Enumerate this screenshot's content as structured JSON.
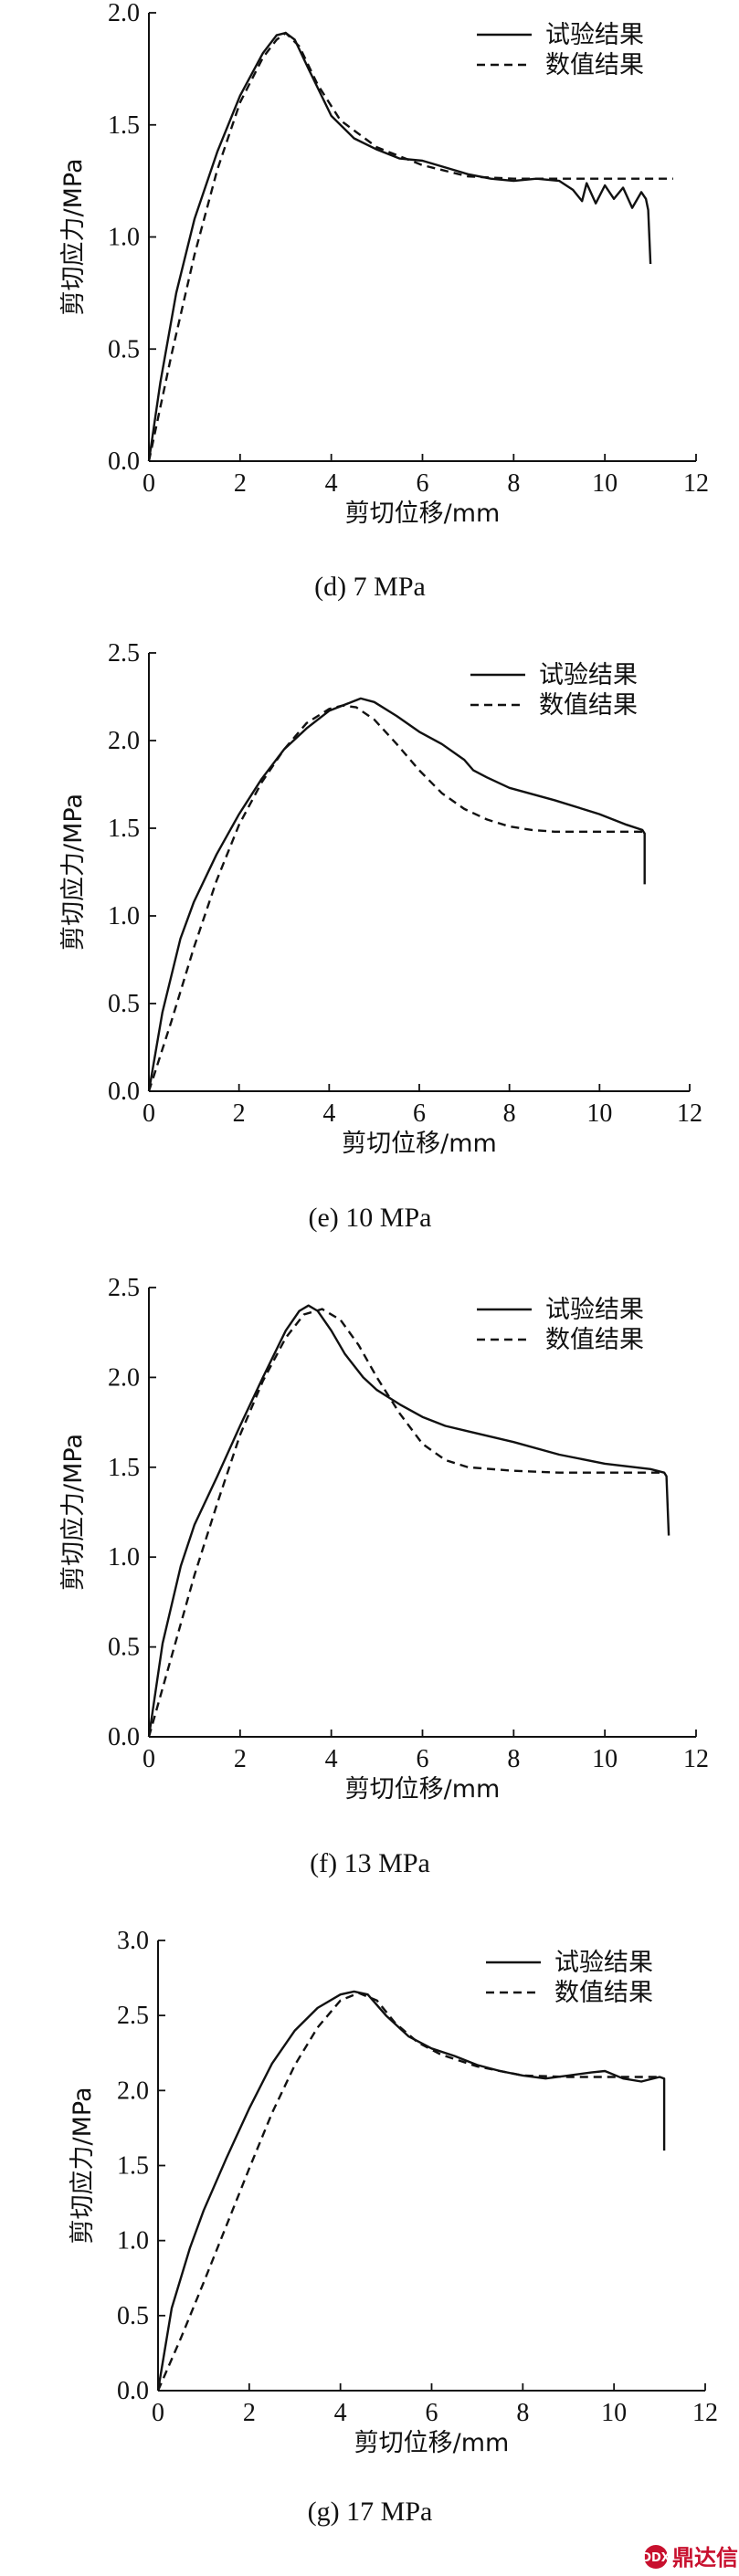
{
  "watermark": {
    "text": "鼎达信",
    "mark": "DDX"
  },
  "chart_data": [
    {
      "type": "line",
      "caption": "(d) 7 MPa",
      "xlabel": "剪切位移/mm",
      "ylabel": "剪切应力/MPa",
      "xlim": [
        0,
        12
      ],
      "ylim": [
        0,
        2.0
      ],
      "xticks": [
        "0",
        "2",
        "4",
        "6",
        "8",
        "10",
        "12"
      ],
      "yticks": [
        "0.0",
        "0.5",
        "1.0",
        "1.5",
        "2.0"
      ],
      "legend_position": "top-right",
      "series": [
        {
          "name": "试验结果",
          "style": "solid",
          "x": [
            0,
            0.25,
            0.6,
            1.0,
            1.5,
            2.0,
            2.5,
            2.8,
            3.0,
            3.2,
            3.5,
            4.0,
            4.5,
            5.0,
            5.5,
            6.0,
            6.5,
            7.0,
            7.5,
            8.0,
            8.5,
            9.0,
            9.3,
            9.5,
            9.6,
            9.8,
            10.0,
            10.2,
            10.4,
            10.6,
            10.8,
            10.9,
            10.95,
            11.0
          ],
          "y": [
            0,
            0.35,
            0.75,
            1.08,
            1.38,
            1.63,
            1.82,
            1.9,
            1.91,
            1.88,
            1.75,
            1.54,
            1.44,
            1.39,
            1.35,
            1.34,
            1.31,
            1.28,
            1.26,
            1.25,
            1.26,
            1.25,
            1.21,
            1.16,
            1.24,
            1.15,
            1.23,
            1.17,
            1.22,
            1.13,
            1.2,
            1.17,
            1.12,
            0.88
          ]
        },
        {
          "name": "数值结果",
          "style": "dashed",
          "x": [
            0,
            0.5,
            1.0,
            1.5,
            2.0,
            2.5,
            2.8,
            3.0,
            3.3,
            3.7,
            4.2,
            5.0,
            6.0,
            7.0,
            8.0,
            9.0,
            10.0,
            11.5
          ],
          "y": [
            0,
            0.48,
            0.92,
            1.3,
            1.6,
            1.8,
            1.88,
            1.91,
            1.85,
            1.68,
            1.52,
            1.4,
            1.32,
            1.27,
            1.26,
            1.26,
            1.26,
            1.26
          ]
        }
      ]
    },
    {
      "type": "line",
      "caption": "(e) 10 MPa",
      "xlabel": "剪切位移/mm",
      "ylabel": "剪切应力/MPa",
      "xlim": [
        0,
        12
      ],
      "ylim": [
        0,
        2.5
      ],
      "xticks": [
        "0",
        "2",
        "4",
        "6",
        "8",
        "10",
        "12"
      ],
      "yticks": [
        "0.0",
        "0.5",
        "1.0",
        "1.5",
        "2.0",
        "2.5"
      ],
      "legend_position": "top-right",
      "series": [
        {
          "name": "试验结果",
          "style": "solid",
          "x": [
            0,
            0.3,
            0.7,
            1.0,
            1.5,
            2.0,
            2.5,
            3.0,
            3.5,
            4.0,
            4.5,
            4.7,
            5.0,
            5.5,
            6.0,
            6.5,
            7.0,
            7.2,
            7.5,
            8.0,
            9.0,
            10.0,
            10.6,
            10.95,
            11.0,
            11.0
          ],
          "y": [
            0,
            0.45,
            0.87,
            1.08,
            1.35,
            1.58,
            1.78,
            1.95,
            2.07,
            2.17,
            2.22,
            2.24,
            2.22,
            2.14,
            2.05,
            1.98,
            1.89,
            1.83,
            1.79,
            1.73,
            1.66,
            1.58,
            1.52,
            1.49,
            1.47,
            1.18
          ]
        },
        {
          "name": "数值结果",
          "style": "dashed",
          "x": [
            0,
            0.5,
            1.0,
            1.5,
            2.0,
            2.5,
            3.0,
            3.5,
            4.0,
            4.3,
            4.6,
            5.0,
            5.5,
            6.0,
            6.5,
            7.0,
            7.5,
            8.0,
            8.5,
            9.0,
            10.0,
            11.0
          ],
          "y": [
            0,
            0.4,
            0.82,
            1.2,
            1.52,
            1.76,
            1.95,
            2.1,
            2.18,
            2.2,
            2.19,
            2.12,
            1.98,
            1.83,
            1.7,
            1.61,
            1.55,
            1.51,
            1.49,
            1.48,
            1.48,
            1.48
          ]
        }
      ]
    },
    {
      "type": "line",
      "caption": "(f) 13 MPa",
      "xlabel": "剪切位移/mm",
      "ylabel": "剪切应力/MPa",
      "xlim": [
        0,
        12
      ],
      "ylim": [
        0,
        2.5
      ],
      "xticks": [
        "0",
        "2",
        "4",
        "6",
        "8",
        "10",
        "12"
      ],
      "yticks": [
        "0.0",
        "0.5",
        "1.0",
        "1.5",
        "2.0",
        "2.5"
      ],
      "legend_position": "top-right",
      "series": [
        {
          "name": "试验结果",
          "style": "solid",
          "x": [
            0,
            0.3,
            0.7,
            1.0,
            1.5,
            2.0,
            2.5,
            3.0,
            3.3,
            3.5,
            3.7,
            4.0,
            4.3,
            4.7,
            5.0,
            5.5,
            6.0,
            6.5,
            7.0,
            8.0,
            9.0,
            10.0,
            11.0,
            11.3,
            11.35,
            11.4
          ],
          "y": [
            0,
            0.52,
            0.95,
            1.18,
            1.45,
            1.73,
            2.0,
            2.26,
            2.37,
            2.4,
            2.37,
            2.26,
            2.13,
            2.0,
            1.93,
            1.85,
            1.78,
            1.73,
            1.7,
            1.64,
            1.57,
            1.52,
            1.49,
            1.47,
            1.45,
            1.12
          ]
        },
        {
          "name": "数值结果",
          "style": "dashed",
          "x": [
            0,
            0.5,
            1.0,
            1.5,
            2.0,
            2.5,
            3.0,
            3.4,
            3.8,
            4.2,
            4.6,
            5.0,
            5.5,
            6.0,
            6.5,
            7.0,
            8.0,
            9.0,
            10.0,
            11.0,
            11.3
          ],
          "y": [
            0,
            0.45,
            0.9,
            1.3,
            1.68,
            1.98,
            2.22,
            2.35,
            2.38,
            2.32,
            2.18,
            2.0,
            1.8,
            1.63,
            1.54,
            1.5,
            1.48,
            1.47,
            1.47,
            1.47,
            1.47
          ]
        }
      ]
    },
    {
      "type": "line",
      "caption": "(g) 17 MPa",
      "xlabel": "剪切位移/mm",
      "ylabel": "剪切应力/MPa",
      "xlim": [
        0,
        12
      ],
      "ylim": [
        0,
        3.0
      ],
      "xticks": [
        "0",
        "2",
        "4",
        "6",
        "8",
        "10",
        "12"
      ],
      "yticks": [
        "0.0",
        "0.5",
        "1.0",
        "1.5",
        "2.0",
        "2.5",
        "3.0"
      ],
      "legend_position": "top-right",
      "series": [
        {
          "name": "试验结果",
          "style": "solid",
          "x": [
            0,
            0.3,
            0.7,
            1.0,
            1.5,
            2.0,
            2.5,
            3.0,
            3.5,
            4.0,
            4.3,
            4.6,
            5.0,
            5.5,
            6.0,
            6.5,
            7.0,
            7.5,
            8.0,
            8.5,
            9.0,
            9.5,
            9.8,
            10.2,
            10.6,
            11.0,
            11.1,
            11.1
          ],
          "y": [
            0,
            0.55,
            0.95,
            1.2,
            1.55,
            1.88,
            2.18,
            2.4,
            2.55,
            2.64,
            2.66,
            2.64,
            2.5,
            2.36,
            2.28,
            2.23,
            2.17,
            2.13,
            2.1,
            2.08,
            2.1,
            2.12,
            2.13,
            2.08,
            2.06,
            2.09,
            2.08,
            1.6
          ]
        },
        {
          "name": "数值结果",
          "style": "dashed",
          "x": [
            0,
            0.5,
            1.0,
            1.5,
            2.0,
            2.5,
            3.0,
            3.5,
            4.0,
            4.4,
            4.8,
            5.2,
            5.7,
            6.2,
            7.0,
            8.0,
            9.0,
            10.0,
            11.0
          ],
          "y": [
            0,
            0.35,
            0.72,
            1.1,
            1.48,
            1.85,
            2.17,
            2.42,
            2.6,
            2.65,
            2.6,
            2.45,
            2.32,
            2.24,
            2.16,
            2.1,
            2.09,
            2.09,
            2.09
          ]
        }
      ]
    }
  ]
}
